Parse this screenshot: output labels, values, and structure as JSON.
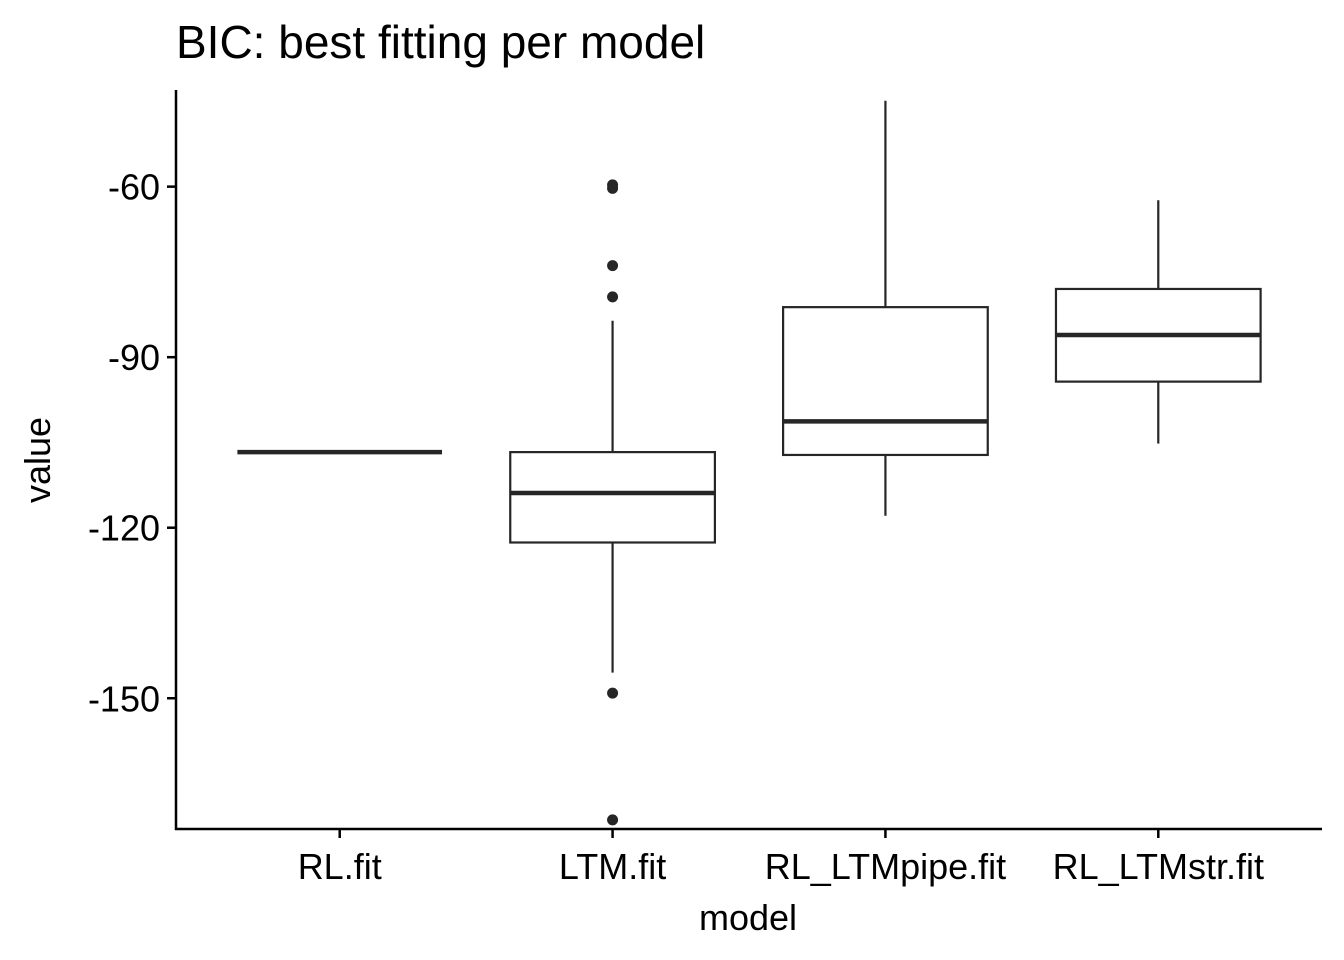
{
  "chart_data": {
    "type": "boxplot",
    "title": "BIC: best fitting per model",
    "xlabel": "model",
    "ylabel": "value",
    "ylim": [
      -173,
      -43
    ],
    "yticks": [
      -60,
      -90,
      -120,
      -150
    ],
    "yticklabels": [
      "-60",
      "-90",
      "-120",
      "-150"
    ],
    "categories": [
      "RL.fit",
      "LTM.fit",
      "RL_LTMpipe.fit",
      "RL_LTMstr.fit"
    ],
    "boxes": [
      {
        "category": "RL.fit",
        "whisker_low": -106.7,
        "q1": -106.7,
        "median": -106.7,
        "q3": -106.7,
        "whisker_high": -106.7,
        "outliers": []
      },
      {
        "category": "LTM.fit",
        "whisker_low": -145.5,
        "q1": -122.6,
        "median": -113.9,
        "q3": -106.7,
        "whisker_high": -83.6,
        "outliers": [
          -59.7,
          -60.3,
          -73.9,
          -79.4,
          -149.1,
          -171.4
        ]
      },
      {
        "category": "RL_LTMpipe.fit",
        "whisker_low": -117.9,
        "q1": -107.2,
        "median": -101.3,
        "q3": -81.2,
        "whisker_high": -44.9,
        "outliers": []
      },
      {
        "category": "RL_LTMstr.fit",
        "whisker_low": -105.2,
        "q1": -94.3,
        "median": -86.1,
        "q3": -78.0,
        "whisker_high": -62.4,
        "outliers": []
      }
    ],
    "colors": {
      "box_fill": "#ffffff",
      "box_stroke": "#262626",
      "median": "#262626",
      "outlier": "#262626",
      "axis": "#000000"
    },
    "grid": false,
    "legend": "none"
  }
}
